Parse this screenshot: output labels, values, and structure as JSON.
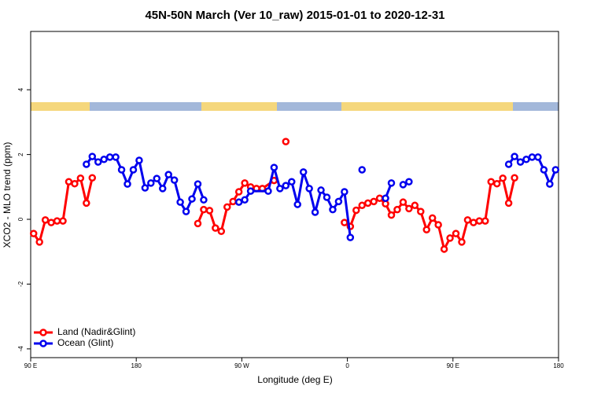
{
  "chart_data": {
    "type": "line",
    "title": "45N-50N March (Ver 10_raw)   2015-01-01 to 2020-12-31",
    "x_label": "Longitude (deg E)",
    "y_label": "XCO2 - MLO trend (ppm)",
    "xlim": [
      90,
      540
    ],
    "ylim": [
      -4.27,
      5.8
    ],
    "xticks": [
      {
        "value": 90,
        "label": "90 E"
      },
      180,
      {
        "value": 270,
        "label": "90 W"
      },
      {
        "value": 360,
        "label": "0"
      },
      {
        "value": 450,
        "label": "90 E"
      },
      {
        "value": 540,
        "label": "180"
      }
    ],
    "yticks": [
      4,
      2,
      0,
      -2,
      -4
    ],
    "legend": "bottom-left",
    "series": [
      {
        "name": "Land (Nadir&Glint)",
        "color": "#ff0000",
        "x": [
          92.5,
          97.5,
          102.5,
          107.5,
          112.5,
          117.5,
          122.5,
          127.5,
          132.5,
          137.5,
          142.5,
          null,
          232.5,
          237.5,
          242.5,
          247.5,
          252.5,
          257.5,
          262.5,
          267.5,
          272.5,
          277.5,
          282.5,
          287.5,
          297.5,
          null,
          307.5,
          null,
          357.5,
          362.5,
          367.5,
          372.5,
          377.5,
          382.5,
          387.5,
          392.5,
          397.5,
          402.5,
          407.5,
          412.5,
          417.5,
          422.5,
          427.5,
          432.5,
          437.5,
          442.5,
          447.5,
          452.5,
          457.5,
          462.5,
          467.5,
          472.5,
          477.5,
          482.5,
          487.5,
          492.5,
          497.5,
          502.5
        ],
        "values": [
          -0.44,
          -0.7,
          -0.02,
          -0.1,
          -0.05,
          -0.05,
          1.16,
          1.1,
          1.27,
          0.5,
          1.28,
          null,
          -0.13,
          0.3,
          0.27,
          -0.27,
          -0.37,
          0.38,
          0.55,
          0.85,
          1.12,
          1.0,
          0.95,
          0.95,
          1.2,
          null,
          2.4,
          null,
          -0.1,
          -0.22,
          0.28,
          0.43,
          0.5,
          0.55,
          0.65,
          0.48,
          0.13,
          0.3,
          0.53,
          0.33,
          0.43,
          0.24,
          -0.32,
          0.04,
          -0.17,
          -0.92,
          -0.58,
          -0.44,
          -0.7,
          -0.02,
          -0.1,
          -0.05,
          -0.05,
          1.16,
          1.1,
          1.27,
          0.5,
          1.28
        ]
      },
      {
        "name": "Ocean (Glint)",
        "color": "#0000ee",
        "x": [
          137.5,
          142.5,
          147.5,
          152.5,
          157.5,
          162.5,
          167.5,
          172.5,
          177.5,
          182.5,
          187.5,
          192.5,
          197.5,
          202.5,
          207.5,
          212.5,
          217.5,
          222.5,
          227.5,
          232.5,
          237.5,
          null,
          267.5,
          272.5,
          277.5,
          292.5,
          297.5,
          302.5,
          307.5,
          312.5,
          317.5,
          322.5,
          327.5,
          332.5,
          337.5,
          342.5,
          347.5,
          352.5,
          357.5,
          362.5,
          null,
          372.5,
          null,
          392.5,
          397.5,
          null,
          407.5,
          412.5,
          null,
          497.5,
          502.5,
          507.5,
          512.5,
          517.5,
          522.5,
          527.5,
          532.5,
          537.5
        ],
        "values": [
          1.7,
          1.94,
          1.77,
          1.85,
          1.92,
          1.92,
          1.53,
          1.09,
          1.53,
          1.82,
          0.97,
          1.12,
          1.26,
          0.95,
          1.38,
          1.21,
          0.53,
          0.24,
          0.63,
          1.09,
          0.6,
          null,
          0.53,
          0.6,
          0.87,
          0.87,
          1.6,
          0.95,
          1.04,
          1.16,
          0.46,
          1.46,
          0.95,
          0.22,
          0.9,
          0.68,
          0.3,
          0.55,
          0.85,
          -0.56,
          null,
          1.53,
          null,
          0.65,
          1.12,
          null,
          1.07,
          1.16,
          null,
          1.7,
          1.94,
          1.77,
          1.85,
          1.92,
          1.92,
          1.53,
          1.09,
          1.53
        ]
      }
    ]
  }
}
